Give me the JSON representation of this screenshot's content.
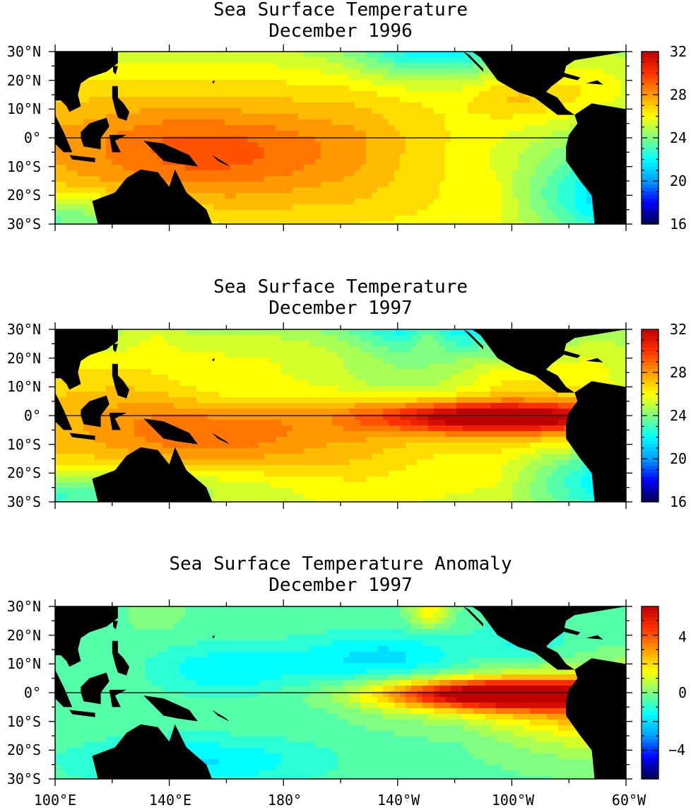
{
  "panels": [
    {
      "title": "Sea Surface Temperature",
      "subtitle": "December 1996",
      "colorbar": {
        "min": 16,
        "max": 32,
        "labels": [
          "32",
          "28",
          "24",
          "20",
          "16"
        ],
        "label_values": [
          32,
          28,
          24,
          20,
          16
        ]
      },
      "field": "sst1996"
    },
    {
      "title": "Sea Surface Temperature",
      "subtitle": "December 1997",
      "colorbar": {
        "min": 16,
        "max": 32,
        "labels": [
          "32",
          "28",
          "24",
          "20",
          "16"
        ],
        "label_values": [
          32,
          28,
          24,
          20,
          16
        ]
      },
      "field": "sst1997"
    },
    {
      "title": "Sea Surface Temperature Anomaly",
      "subtitle": "December 1997",
      "colorbar": {
        "min": -6,
        "max": 6,
        "labels": [
          "4",
          "0",
          "−4"
        ],
        "label_values": [
          4,
          0,
          -4
        ]
      },
      "field": "anom1997"
    }
  ],
  "lat_labels": [
    "30°N",
    "20°N",
    "10°N",
    "0°",
    "10°S",
    "20°S",
    "30°S"
  ],
  "lon_labels": [
    "100°E",
    "140°E",
    "180°",
    "140°W",
    "100°W",
    "60°W"
  ],
  "colormap": [
    "#000050",
    "#0000ff",
    "#00a0ff",
    "#00ffff",
    "#80ff80",
    "#ffff00",
    "#ff9900",
    "#ff3000",
    "#c00000"
  ],
  "land_color": "#000000"
}
